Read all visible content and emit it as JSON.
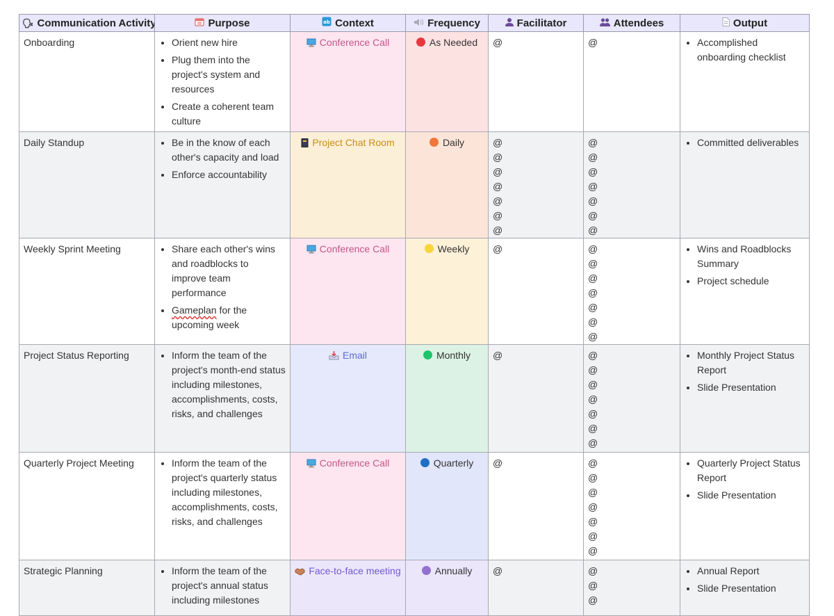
{
  "headers": {
    "activity": "Communication Activity",
    "purpose": "Purpose",
    "context": "Context",
    "frequency": "Frequency",
    "facilitator": "Facilitator",
    "attendees": "Attendees",
    "output": "Output"
  },
  "header_icons": {
    "activity": "speaking-head-icon",
    "purpose": "calendar-icon",
    "context": "abcd-input-icon",
    "frequency": "speaker-icon",
    "facilitator": "person-silhouette-icon",
    "attendees": "people-silhouette-icon",
    "output": "document-icon"
  },
  "mention_symbol": "@",
  "rows": [
    {
      "activity": "Onboarding",
      "purpose": [
        "Orient new hire",
        "Plug them into the project's system and resources",
        "Create a coherent team culture"
      ],
      "context": "Conference Call",
      "frequency": "As Needed",
      "frequency_color": "#e8383d",
      "facilitator_count": 1,
      "attendee_count": 1,
      "output": [
        "Accomplished onboarding checklist"
      ]
    },
    {
      "activity": "Daily Standup",
      "purpose": [
        "Be in the know of each other's capacity and load",
        "Enforce accountability"
      ],
      "context": "Project Chat Room",
      "frequency": "Daily",
      "frequency_color": "#f0763a",
      "facilitator_count": 7,
      "attendee_count": 7,
      "output": [
        "Committed deliverables"
      ]
    },
    {
      "activity": "Weekly Sprint Meeting",
      "purpose": [
        "Share each other's wins and roadblocks to improve team performance",
        "Gameplan for the upcoming week"
      ],
      "context": "Conference Call",
      "frequency": "Weekly",
      "frequency_color": "#f9d53c",
      "facilitator_count": 1,
      "attendee_count": 7,
      "output": [
        "Wins and Roadblocks Summary",
        "Project schedule"
      ]
    },
    {
      "activity": "Project Status Reporting",
      "purpose": [
        "Inform the team of the project's month-end status including milestones, accomplishments, costs, risks, and challenges"
      ],
      "context": "Email",
      "frequency": "Monthly",
      "frequency_color": "#1fc36a",
      "facilitator_count": 1,
      "attendee_count": 7,
      "output": [
        "Monthly Project Status Report",
        "Slide Presentation"
      ]
    },
    {
      "activity": "Quarterly Project Meeting",
      "purpose": [
        "Inform the team of the project's quarterly status including milestones, accomplishments, costs, risks, and challenges"
      ],
      "context": "Conference Call",
      "frequency": "Quarterly",
      "frequency_color": "#1f6fc4",
      "facilitator_count": 1,
      "attendee_count": 7,
      "output": [
        "Quarterly Project Status Report",
        "Slide Presentation"
      ]
    },
    {
      "activity": "Strategic Planning",
      "purpose": [
        "Inform the team of the project's annual status including milestones"
      ],
      "context": "Face-to-face meeting",
      "frequency": "Annually",
      "frequency_color": "#9470cf",
      "facilitator_count": 1,
      "attendee_count": 3,
      "output": [
        "Annual Report",
        "Slide Presentation"
      ]
    }
  ]
}
